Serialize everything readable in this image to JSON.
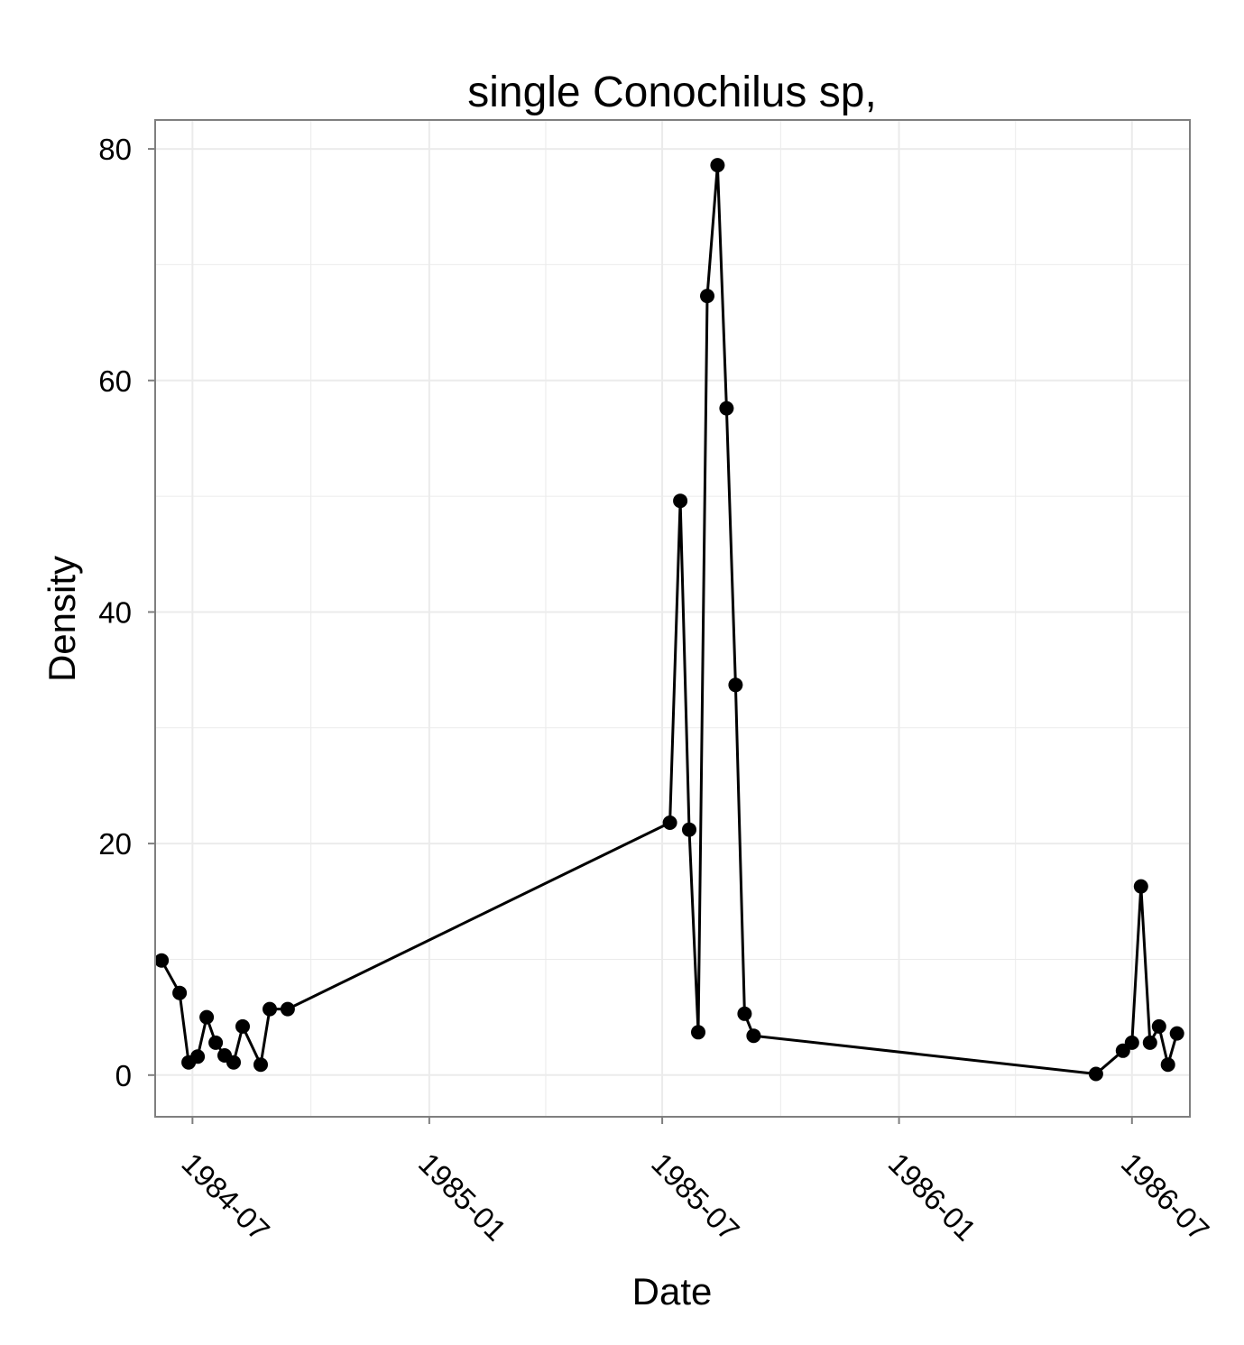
{
  "chart_data": {
    "type": "line",
    "title": "single Conochilus sp,",
    "xlabel": "Date",
    "ylabel": "Density",
    "x_axis_type": "date",
    "xlim": [
      "1984-06-02",
      "1986-08-15"
    ],
    "ylim": [
      -3.6,
      82.5
    ],
    "x_ticks": [
      "1984-07",
      "1985-01",
      "1985-07",
      "1986-01",
      "1986-07"
    ],
    "y_ticks": [
      0,
      20,
      40,
      60,
      80
    ],
    "grid": true,
    "legend": "none",
    "colors": {
      "panel_background": "#ffffff",
      "panel_border": "#7f7f7f",
      "grid_line": "#ebebeb",
      "series": "#000000"
    },
    "series": [
      {
        "points": [
          {
            "x": "1984-06-07",
            "y": 9.9
          },
          {
            "x": "1984-06-21",
            "y": 7.1
          },
          {
            "x": "1984-06-28",
            "y": 1.1
          },
          {
            "x": "1984-07-05",
            "y": 1.6
          },
          {
            "x": "1984-07-12",
            "y": 5.0
          },
          {
            "x": "1984-07-19",
            "y": 2.8
          },
          {
            "x": "1984-07-26",
            "y": 1.7
          },
          {
            "x": "1984-08-02",
            "y": 1.1
          },
          {
            "x": "1984-08-09",
            "y": 4.2
          },
          {
            "x": "1984-08-23",
            "y": 0.9
          },
          {
            "x": "1984-08-30",
            "y": 5.7
          },
          {
            "x": "1984-09-13",
            "y": 5.7
          },
          {
            "x": "1985-07-07",
            "y": 21.8
          },
          {
            "x": "1985-07-15",
            "y": 49.6
          },
          {
            "x": "1985-07-22",
            "y": 21.2
          },
          {
            "x": "1985-07-29",
            "y": 3.7
          },
          {
            "x": "1985-08-05",
            "y": 67.3
          },
          {
            "x": "1985-08-13",
            "y": 78.6
          },
          {
            "x": "1985-08-20",
            "y": 57.6
          },
          {
            "x": "1985-08-27",
            "y": 33.7
          },
          {
            "x": "1985-09-03",
            "y": 5.3
          },
          {
            "x": "1985-09-10",
            "y": 3.4
          },
          {
            "x": "1986-06-03",
            "y": 0.1
          },
          {
            "x": "1986-06-24",
            "y": 2.1
          },
          {
            "x": "1986-07-01",
            "y": 2.8
          },
          {
            "x": "1986-07-08",
            "y": 16.3
          },
          {
            "x": "1986-07-15",
            "y": 2.8
          },
          {
            "x": "1986-07-22",
            "y": 4.2
          },
          {
            "x": "1986-07-29",
            "y": 0.9
          },
          {
            "x": "1986-08-05",
            "y": 3.6
          }
        ]
      }
    ]
  }
}
